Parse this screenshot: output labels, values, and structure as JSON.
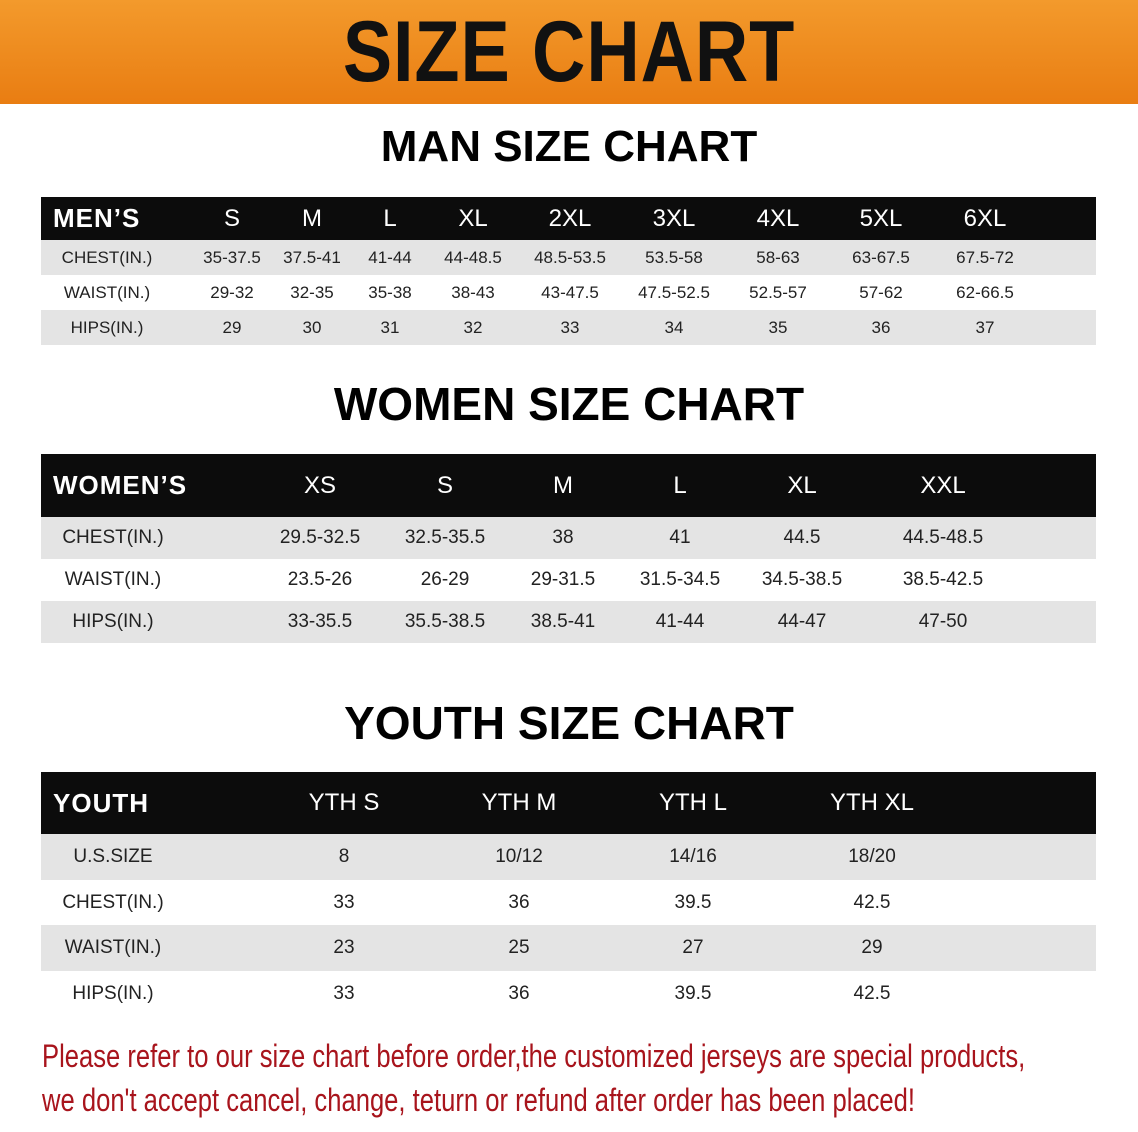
{
  "banner_title": "SIZE CHART",
  "colors": {
    "banner": "#ee8a1e",
    "header_row": "#0c0c0c",
    "shaded_row": "#e4e4e4",
    "note_text": "#a8141c"
  },
  "men": {
    "title": "MAN SIZE CHART",
    "header_label": "MEN’S",
    "sizes": [
      "S",
      "M",
      "L",
      "XL",
      "2XL",
      "3XL",
      "4XL",
      "5XL",
      "6XL"
    ],
    "rows": [
      {
        "label": "CHEST(IN.)",
        "values": [
          "35-37.5",
          "37.5-41",
          "41-44",
          "44-48.5",
          "48.5-53.5",
          "53.5-58",
          "58-63",
          "63-67.5",
          "67.5-72"
        ]
      },
      {
        "label": "WAIST(IN.)",
        "values": [
          "29-32",
          "32-35",
          "35-38",
          "38-43",
          "43-47.5",
          "47.5-52.5",
          "52.5-57",
          "57-62",
          "62-66.5"
        ]
      },
      {
        "label": "HIPS(IN.)",
        "values": [
          "29",
          "30",
          "31",
          "32",
          "33",
          "34",
          "35",
          "36",
          "37"
        ]
      }
    ]
  },
  "women": {
    "title": "WOMEN SIZE CHART",
    "header_label": "WOMEN’S",
    "sizes": [
      "XS",
      "S",
      "M",
      "L",
      "XL",
      "XXL"
    ],
    "rows": [
      {
        "label": "CHEST(IN.)",
        "values": [
          "29.5-32.5",
          "32.5-35.5",
          "38",
          "41",
          "44.5",
          "44.5-48.5"
        ]
      },
      {
        "label": "WAIST(IN.)",
        "values": [
          "23.5-26",
          "26-29",
          "29-31.5",
          "31.5-34.5",
          "34.5-38.5",
          "38.5-42.5"
        ]
      },
      {
        "label": "HIPS(IN.)",
        "values": [
          "33-35.5",
          "35.5-38.5",
          "38.5-41",
          "41-44",
          "44-47",
          "47-50"
        ]
      }
    ]
  },
  "youth": {
    "title": "YOUTH SIZE CHART",
    "header_label": "YOUTH",
    "sizes": [
      "YTH S",
      "YTH M",
      "YTH L",
      "YTH XL"
    ],
    "rows": [
      {
        "label": "U.S.SIZE",
        "values": [
          "8",
          "10/12",
          "14/16",
          "18/20"
        ]
      },
      {
        "label": "CHEST(IN.)",
        "values": [
          "33",
          "36",
          "39.5",
          "42.5"
        ]
      },
      {
        "label": "WAIST(IN.)",
        "values": [
          "23",
          "25",
          "27",
          "29"
        ]
      },
      {
        "label": "HIPS(IN.)",
        "values": [
          "33",
          "36",
          "39.5",
          "42.5"
        ]
      }
    ]
  },
  "note": {
    "line1": "Please refer to our size chart before order,the customized jerseys are special products,",
    "line2": "we don't accept cancel, change, teturn or refund after order has been placed!"
  }
}
